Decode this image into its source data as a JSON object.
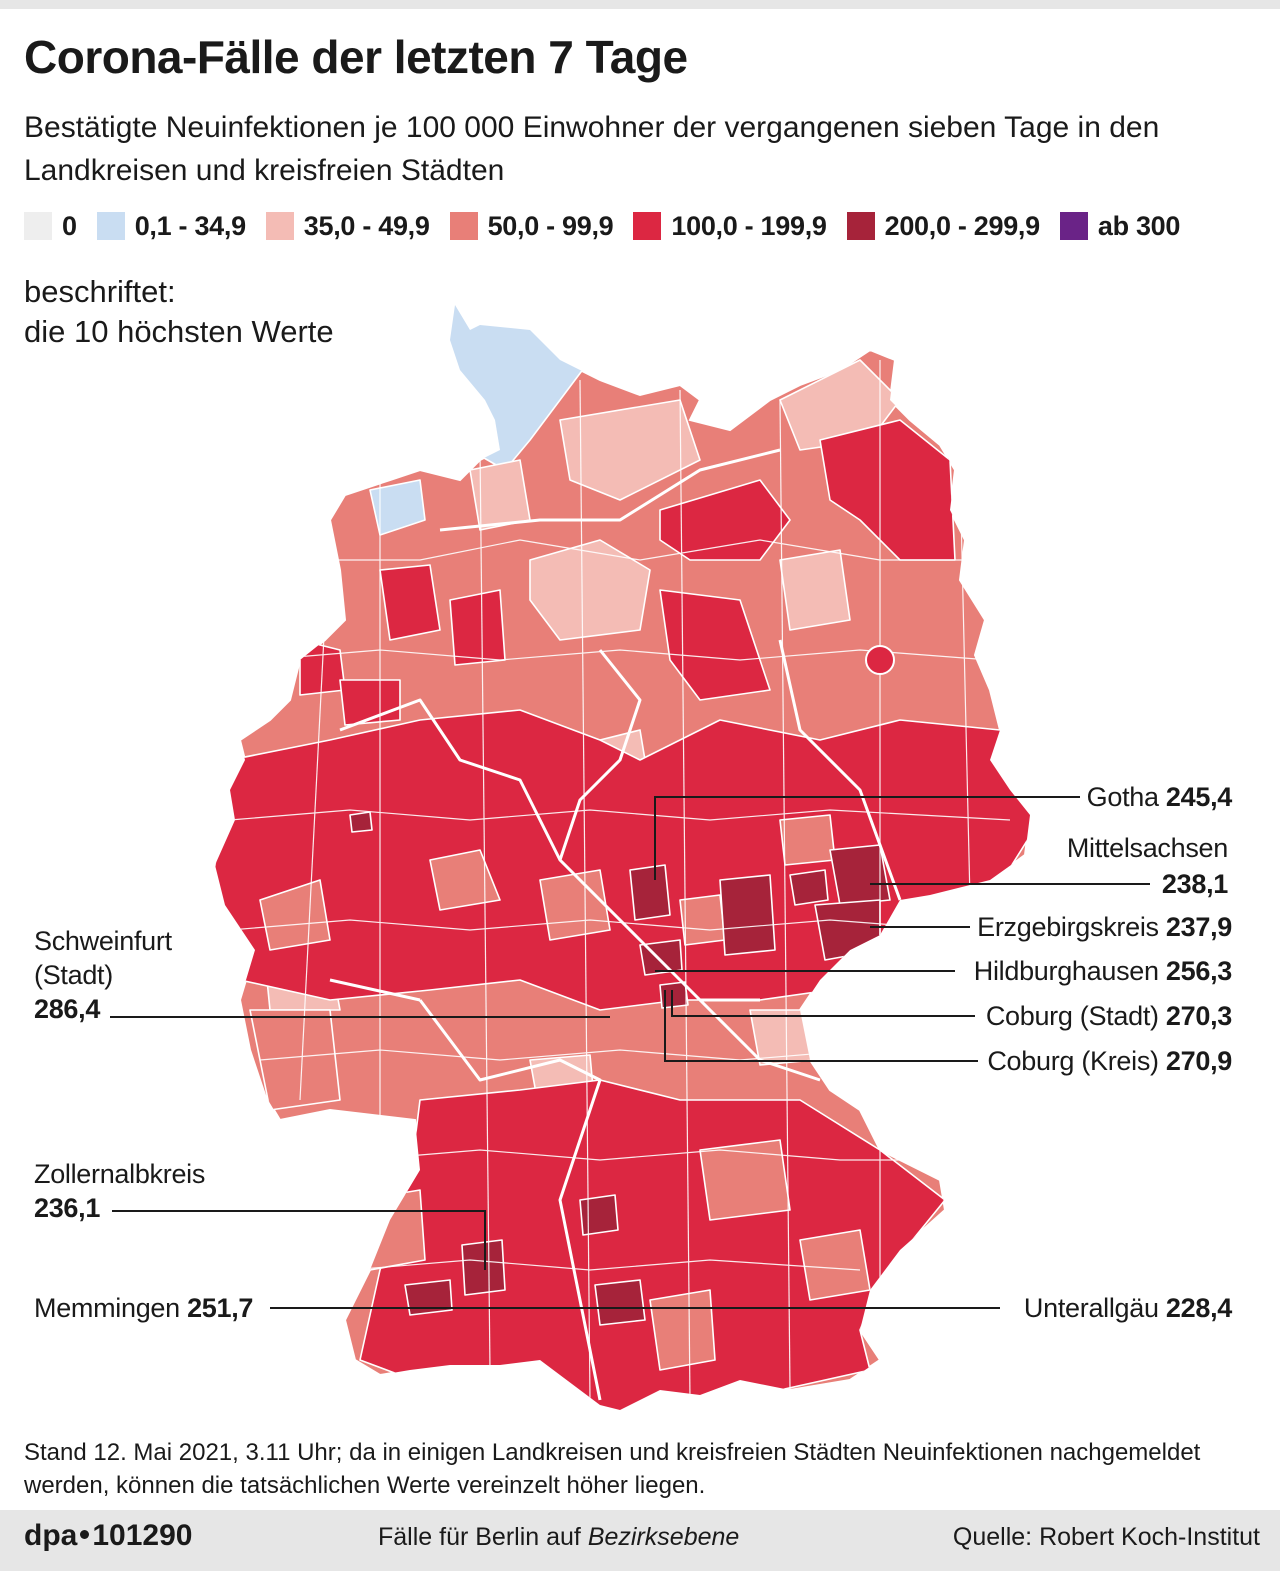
{
  "header": {
    "title": "Corona-Fälle der letzten 7 Tage",
    "subtitle": "Bestätigte Neuinfektionen je 100 000 Einwohner der vergangenen sieben Tage in den Landkreisen und kreisfreien Städten"
  },
  "legend": [
    {
      "label": "0",
      "color": "#eeeeee"
    },
    {
      "label": "0,1 - 34,9",
      "color": "#c9ddf2"
    },
    {
      "label": "35,0 - 49,9",
      "color": "#f4bcb5"
    },
    {
      "label": "50,0 - 99,9",
      "color": "#e87f78"
    },
    {
      "label": "100,0 - 199,9",
      "color": "#dc2742"
    },
    {
      "label": "200,0 - 299,9",
      "color": "#a6233a"
    },
    {
      "label": "ab 300",
      "color": "#6a2387"
    }
  ],
  "note": {
    "line1": "beschriftet:",
    "line2": "die 10 höchsten Werte"
  },
  "callouts": {
    "gotha": {
      "name": "Gotha",
      "value": "245,4"
    },
    "mittelsachsen": {
      "name": "Mittelsachsen",
      "value": "238,1"
    },
    "erzgebirgskreis": {
      "name": "Erzgebirgskreis",
      "value": "237,9"
    },
    "hildburghausen": {
      "name": "Hildburghausen",
      "value": "256,3"
    },
    "coburg_stadt": {
      "name": "Coburg (Stadt)",
      "value": "270,3"
    },
    "coburg_kreis": {
      "name": "Coburg (Kreis)",
      "value": "270,9"
    },
    "schweinfurt": {
      "name_line1": "Schweinfurt",
      "name_line2": "(Stadt)",
      "value": "286,4"
    },
    "zollernalbkreis": {
      "name": "Zollernalbkreis",
      "value": "236,1"
    },
    "memmingen": {
      "name": "Memmingen",
      "value": "251,7"
    },
    "unterallgaeu": {
      "name": "Unterallgäu",
      "value": "228,4"
    }
  },
  "footnote": "Stand 12. Mai 2021, 3.11 Uhr; da in einigen Landkreisen und kreisfreien Städten Neuinfektionen nachgemeldet werden, können die tatsächlichen Werte vereinzelt höher liegen.",
  "footer": {
    "agency": "dpa",
    "number": "101290",
    "berlin_prefix": "Fälle für Berlin auf ",
    "berlin_italic": "Bezirksebene",
    "source": "Quelle: Robert Koch-Institut"
  }
}
